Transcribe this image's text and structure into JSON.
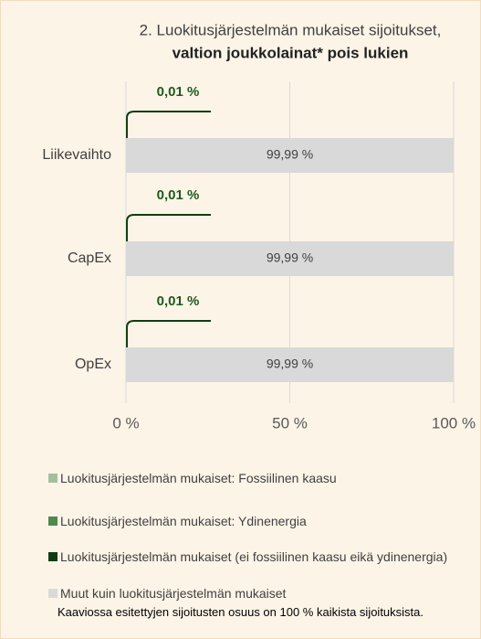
{
  "chart_data": {
    "type": "stacked-barh",
    "title": "2. Luokitusjärjestelmän mukaiset sijoitukset,",
    "subtitle": "valtion joukkolainat* pois lukien",
    "categories": [
      "Liikevaihto",
      "CapEx",
      "OpEx"
    ],
    "series": [
      {
        "name": "Luokitusjärjestelmän mukaiset: Fossiilinen kaasu",
        "color": "#a3bf9c",
        "values": [
          0,
          0,
          0
        ]
      },
      {
        "name": "Luokitusjärjestelmän mukaiset: Ydinenergia",
        "color": "#4e8a4c",
        "values": [
          0,
          0,
          0
        ]
      },
      {
        "name": "Luokitusjärjestelmän mukaiset (ei fossiilinen kaasu eikä ydinenergia)",
        "color": "#0f3d12",
        "values": [
          0.01,
          0.01,
          0.01
        ],
        "value_labels": [
          "0,01 %",
          "0,01 %",
          "0,01 %"
        ]
      },
      {
        "name": "Muut kuin luokitusjärjestelmän mukaiset",
        "color": "#d9d9d9",
        "values": [
          99.99,
          99.99,
          99.99
        ],
        "value_labels": [
          "99,99 %",
          "99,99 %",
          "99,99 %"
        ]
      }
    ],
    "xlim": [
      0,
      100
    ],
    "xticks": [
      {
        "value": 0,
        "label": "0 %"
      },
      {
        "value": 50,
        "label": "50 %"
      },
      {
        "value": 100,
        "label": "100 %"
      }
    ],
    "grid": true,
    "legend": "bottom",
    "footnote": "Kaaviossa esitettyjen sijoitusten osuus on 100 % kaikista sijoituksista."
  }
}
